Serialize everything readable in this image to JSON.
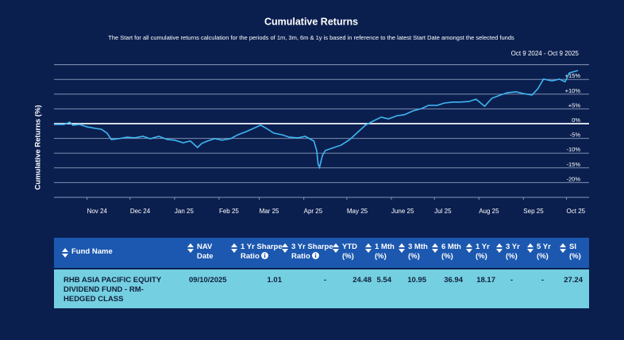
{
  "chart_data": {
    "type": "line",
    "title": "Cumulative Returns",
    "subtitle": "The Start for all cumulative returns calculation for the periods of 1m, 3m, 6m & 1y is based in reference to the latest Start Date amongst the selected funds",
    "date_range": "Oct 9 2024 - Oct 9 2025",
    "y_label": "Cumulative Returns (%)",
    "x": [
      0,
      7,
      11,
      13,
      18,
      23,
      29,
      33,
      37,
      40,
      45,
      51,
      56,
      62,
      67,
      73,
      79,
      84,
      90,
      95,
      100,
      103,
      107,
      112,
      117,
      123,
      128,
      134,
      139,
      144,
      148,
      153,
      159,
      164,
      170,
      175,
      181,
      183,
      184,
      185,
      187,
      189,
      195,
      200,
      206,
      211,
      217,
      222,
      228,
      233,
      239,
      244,
      250,
      256,
      261,
      267,
      272,
      278,
      283,
      289,
      294,
      300,
      305,
      311,
      316,
      322,
      327,
      333,
      337,
      341,
      347,
      352,
      356,
      359,
      365
    ],
    "series": [
      {
        "color": "#3fb6f2",
        "values": [
          -0.3,
          -0.3,
          0.5,
          -0.5,
          -0.3,
          -1.1,
          -1.6,
          -1.9,
          -3.2,
          -5.4,
          -5.1,
          -4.6,
          -4.8,
          -4.3,
          -5.1,
          -4.3,
          -5.4,
          -5.6,
          -6.5,
          -5.9,
          -8.1,
          -6.7,
          -5.9,
          -5.1,
          -5.6,
          -5.1,
          -3.8,
          -2.7,
          -1.6,
          -0.5,
          -1.6,
          -3.2,
          -3.8,
          -4.6,
          -4.8,
          -4.3,
          -5.9,
          -9.1,
          -13.7,
          -14.8,
          -10.8,
          -9.1,
          -8.1,
          -7.3,
          -5.4,
          -3.2,
          -0.5,
          0.8,
          2.2,
          1.6,
          2.7,
          3.0,
          4.3,
          5.1,
          6.2,
          6.2,
          7.0,
          7.3,
          7.3,
          7.5,
          8.3,
          5.9,
          8.6,
          9.7,
          10.5,
          10.8,
          10.2,
          9.7,
          11.8,
          15.1,
          14.5,
          15.1,
          14.2,
          17.2,
          18.0
        ]
      }
    ],
    "xlim": [
      0,
      365
    ],
    "xticks": [
      {
        "value": 23,
        "label": "Nov 24"
      },
      {
        "value": 53,
        "label": "Dec 24"
      },
      {
        "value": 84,
        "label": "Jan 25"
      },
      {
        "value": 115,
        "label": "Feb 25"
      },
      {
        "value": 143,
        "label": "Mar 25"
      },
      {
        "value": 174,
        "label": "Apr 25"
      },
      {
        "value": 204,
        "label": "May 25"
      },
      {
        "value": 235,
        "label": "June 25"
      },
      {
        "value": 265,
        "label": "Jul 25"
      },
      {
        "value": 296,
        "label": "Aug 25"
      },
      {
        "value": 327,
        "label": "Sep 25"
      },
      {
        "value": 357,
        "label": "Oct 25"
      }
    ],
    "ylim": [
      -25,
      20
    ],
    "yticks": [
      {
        "value": 15,
        "label": "+15%"
      },
      {
        "value": 10,
        "label": "+10%"
      },
      {
        "value": 5,
        "label": "+5%"
      },
      {
        "value": 0,
        "label": "0%"
      },
      {
        "value": -5,
        "label": "-5%"
      },
      {
        "value": -10,
        "label": "-10%"
      },
      {
        "value": -15,
        "label": "-15%"
      },
      {
        "value": -20,
        "label": "-20%"
      }
    ],
    "grid": true
  },
  "table": {
    "columns": [
      {
        "label": "Fund Name"
      },
      {
        "label": "NAV Date"
      },
      {
        "label": "1 Yr Sharpe Ratio",
        "info": true
      },
      {
        "label": "3 Yr Sharpe Ratio",
        "info": true
      },
      {
        "label": "YTD (%)"
      },
      {
        "label": "1 Mth (%)"
      },
      {
        "label": "3 Mth (%)"
      },
      {
        "label": "6 Mth (%)"
      },
      {
        "label": "1 Yr (%)"
      },
      {
        "label": "3 Yr (%)"
      },
      {
        "label": "5 Yr (%)"
      },
      {
        "label": "SI (%)"
      }
    ],
    "rows": [
      [
        "RHB ASIA PACIFIC EQUITY DIVIDEND FUND - RM-HEDGED CLASS",
        "09/10/2025",
        1.01,
        "-",
        24.48,
        5.54,
        10.95,
        36.94,
        18.17,
        "-",
        "-",
        27.24
      ]
    ]
  }
}
